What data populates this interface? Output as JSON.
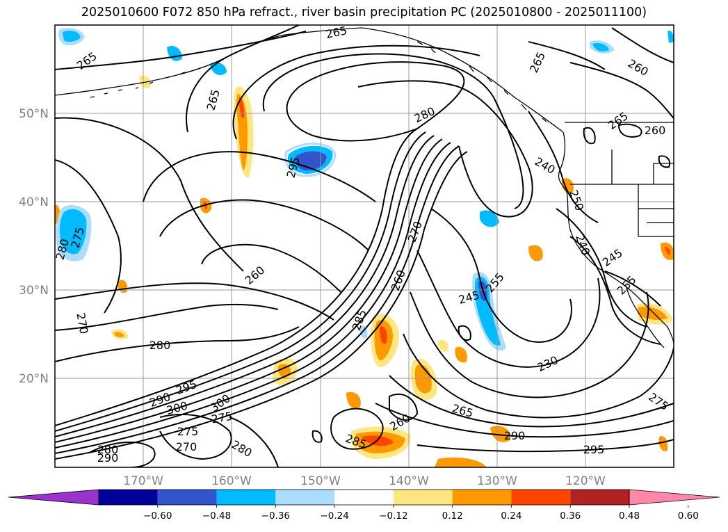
{
  "title": "2025010600 F072 850 hPa refract., river basin precipitation PC (2025010800 - 2025011100)",
  "latitude_labels": [
    "50°N",
    "40°N",
    "30°N",
    "20°N"
  ],
  "longitude_labels": [
    "170°W",
    "160°W",
    "150°W",
    "140°W",
    "130°W",
    "120°W"
  ],
  "contour_labels": [
    "265",
    "265",
    "265",
    "265",
    "260",
    "265",
    "260",
    "280",
    "295",
    "240",
    "250",
    "240",
    "245",
    "255",
    "270",
    "275",
    "280",
    "260",
    "260",
    "255",
    "245",
    "285",
    "270",
    "280",
    "290",
    "295",
    "300",
    "275",
    "270",
    "280",
    "290",
    "300",
    "275",
    "280",
    "265",
    "260",
    "285",
    "290",
    "230",
    "295",
    "275"
  ],
  "colorbar": {
    "colors": [
      "#9933cc",
      "#000099",
      "#3355cc",
      "#00bbff",
      "#aaddff",
      "#ffffff",
      "#ffe680",
      "#ff9900",
      "#ff4400",
      "#b22222",
      "#ff88aa"
    ],
    "tick_labels": [
      "−0.60",
      "−0.48",
      "−0.36",
      "−0.24",
      "−0.12",
      "0.12",
      "0.24",
      "0.36",
      "0.48",
      "0.60"
    ]
  },
  "legend_colors": {
    "gridline": "#999999",
    "contour": "#000000",
    "coast": "#000000"
  }
}
